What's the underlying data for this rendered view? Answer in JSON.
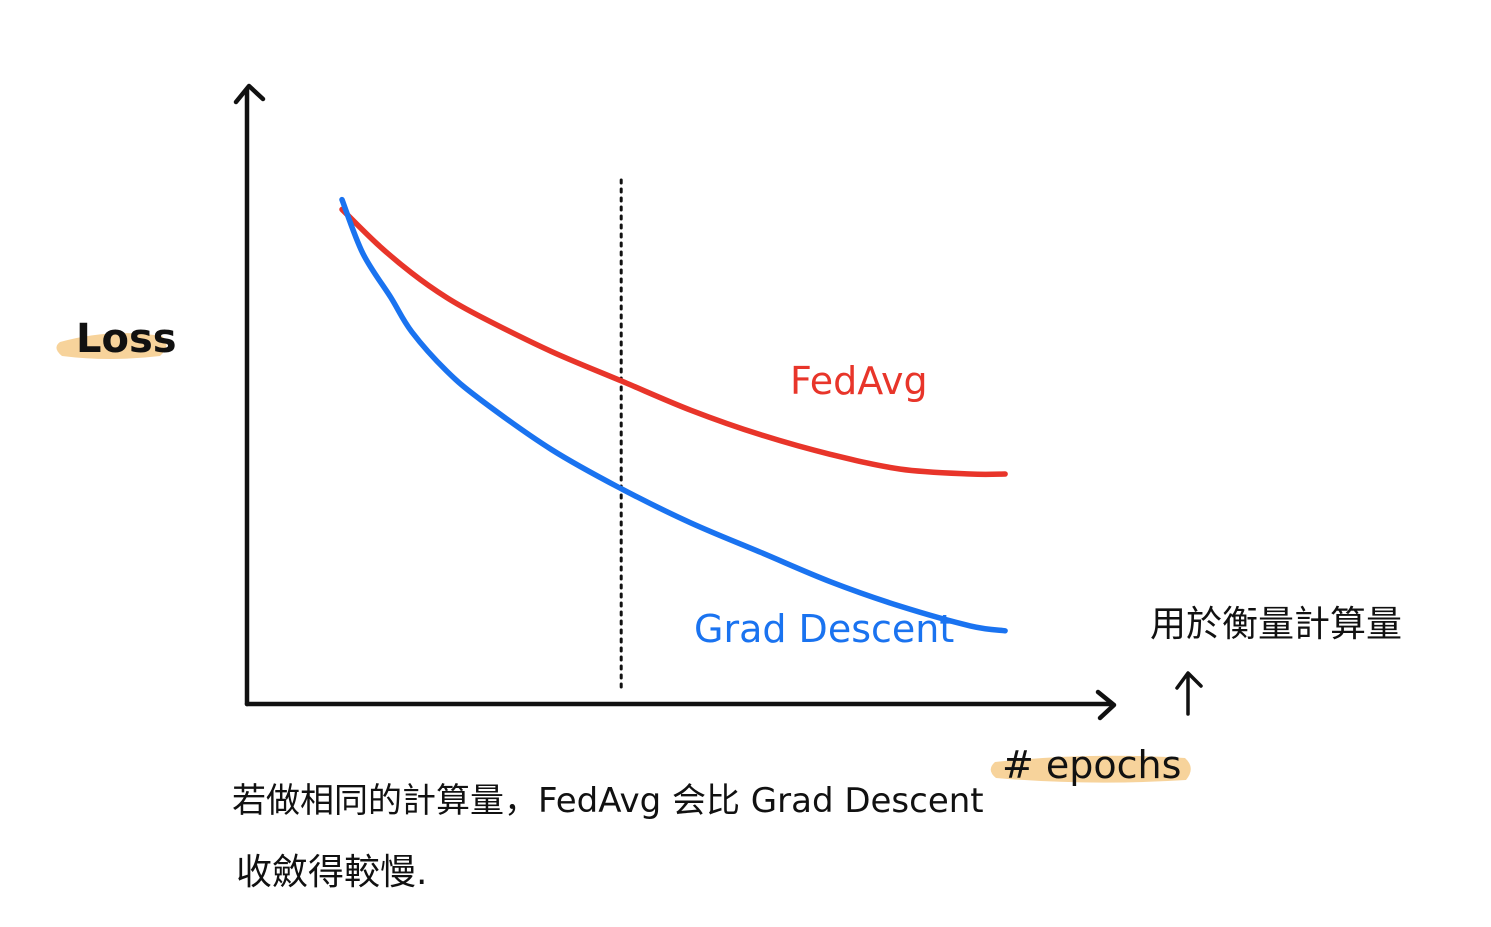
{
  "chart_data": {
    "type": "line",
    "title": "",
    "xlabel": "# epochs",
    "ylabel": "Loss",
    "xlim": [
      0,
      10
    ],
    "ylim": [
      0,
      10
    ],
    "grid": false,
    "legend": "inline labels",
    "series": [
      {
        "name": "FedAvg",
        "color": "#e8352a",
        "x": [
          0,
          0.5,
          1,
          1.5,
          2,
          3,
          4,
          5,
          6,
          7,
          8,
          9,
          9.5
        ],
        "y": [
          9.4,
          8.7,
          8.1,
          7.6,
          7.2,
          6.5,
          5.9,
          5.3,
          4.8,
          4.4,
          4.1,
          4.0,
          4.0
        ]
      },
      {
        "name": "Grad Descent",
        "color": "#1a73f0",
        "x": [
          0,
          0.3,
          0.7,
          1,
          1.5,
          2,
          3,
          4,
          5,
          6,
          7,
          8,
          9,
          9.5
        ],
        "y": [
          9.6,
          8.5,
          7.6,
          6.9,
          6.1,
          5.5,
          4.5,
          3.7,
          3.0,
          2.4,
          1.8,
          1.3,
          0.9,
          0.8
        ]
      }
    ],
    "marker_line": {
      "x": 4.0,
      "style": "dotted"
    }
  },
  "labels": {
    "y_axis": "Loss",
    "x_axis": "# epochs",
    "fedavg": "FedAvg",
    "grad_descent": "Grad Descent",
    "side_note": "用於衡量計算量",
    "note_line1": "若做相同的計算量，FedAvg 会比 Grad Descent",
    "note_line2": "收斂得較慢."
  },
  "colors": {
    "axis": "#111111",
    "fedavg": "#e8352a",
    "grad_descent": "#1a73f0",
    "highlight": "#f7d39b"
  }
}
